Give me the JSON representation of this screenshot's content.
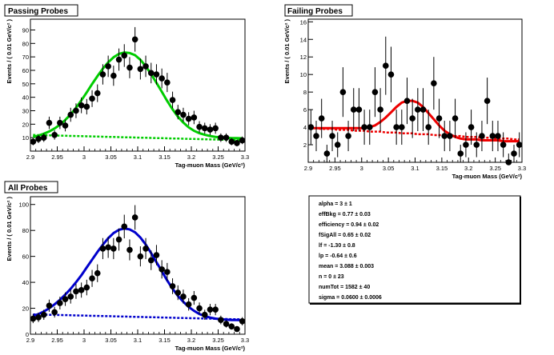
{
  "chart_data": [
    {
      "type": "scatter",
      "title": "Passing Probes",
      "xlabel": "Tag-muon Mass (GeV/c²)",
      "ylabel": "Events / ( 0.01 GeV/c² )",
      "xlim": [
        2.9,
        3.3
      ],
      "ylim": [
        0,
        98
      ],
      "xticks": [
        "2.9",
        "2.95",
        "3",
        "3.05",
        "3.1",
        "3.15",
        "3.2",
        "3.25",
        "3.3"
      ],
      "yticks": [
        "10",
        "20",
        "30",
        "40",
        "50",
        "60",
        "70",
        "80",
        "90"
      ],
      "ytick_values": [
        10,
        20,
        30,
        40,
        50,
        60,
        70,
        80,
        90
      ],
      "x": [
        2.905,
        2.915,
        2.925,
        2.935,
        2.945,
        2.955,
        2.965,
        2.975,
        2.985,
        2.995,
        3.005,
        3.015,
        3.025,
        3.035,
        3.045,
        3.055,
        3.065,
        3.075,
        3.085,
        3.095,
        3.105,
        3.115,
        3.125,
        3.135,
        3.145,
        3.155,
        3.165,
        3.175,
        3.185,
        3.195,
        3.205,
        3.215,
        3.225,
        3.235,
        3.245,
        3.255,
        3.265,
        3.275,
        3.285,
        3.295
      ],
      "series": [
        {
          "values": [
            7,
            9,
            10,
            21,
            12,
            21,
            19,
            27,
            30,
            34,
            33,
            39,
            43,
            57,
            63,
            56,
            68,
            71,
            62,
            83,
            61,
            63,
            58,
            57,
            54,
            51,
            38,
            29,
            27,
            24,
            25,
            18,
            17,
            16,
            17,
            10,
            10,
            7,
            6,
            8
          ],
          "color": "#000000"
        },
        {
          "values": [
            10.5,
            11.5,
            12.9,
            14.6,
            16.8,
            19.6,
            23.1,
            27.3,
            32.2,
            37.8,
            43.7,
            49.9,
            55.8,
            61.3,
            66.0,
            69.7,
            72.2,
            73.3,
            72.9,
            71.3,
            67.8,
            63.0,
            57.2,
            50.8,
            44.0,
            37.3,
            31.0,
            25.6,
            21.2,
            17.7,
            15.1,
            13.3,
            12.1,
            11.2,
            10.6,
            10.2,
            9.9,
            9.7,
            9.6,
            9.5
          ],
          "color": "#00cc00"
        },
        {
          "values": [
            12.0,
            11.9,
            11.8,
            11.7,
            11.6,
            11.5,
            11.4,
            11.3,
            11.2,
            11.1,
            11.0,
            10.9,
            10.8,
            10.7,
            10.6,
            10.5,
            10.4,
            10.3,
            10.2,
            10.1,
            10.0,
            9.9,
            9.8,
            9.7,
            9.6,
            9.5,
            9.4,
            9.3,
            9.2,
            9.1,
            9.0,
            8.9,
            8.8,
            8.7,
            8.6,
            8.5,
            8.4,
            8.3,
            8.2,
            8.1
          ],
          "color": "#00cc00"
        }
      ],
      "color": "#00cc00"
    },
    {
      "type": "scatter",
      "title": "Failing Probes",
      "xlabel": "Tag-muon Mass (GeV/c²)",
      "ylabel": "Events / ( 0.01 GeV/c² )",
      "xlim": [
        2.9,
        3.3
      ],
      "ylim": [
        0,
        16.3
      ],
      "xticks": [
        "2.9",
        "2.95",
        "3",
        "3.05",
        "3.1",
        "3.15",
        "3.2",
        "3.25",
        "3.3"
      ],
      "yticks": [
        "2",
        "4",
        "6",
        "8",
        "10",
        "12",
        "14",
        "16"
      ],
      "ytick_values": [
        2,
        4,
        6,
        8,
        10,
        12,
        14,
        16
      ],
      "x": [
        2.905,
        2.915,
        2.925,
        2.935,
        2.945,
        2.955,
        2.965,
        2.975,
        2.985,
        2.995,
        3.005,
        3.015,
        3.025,
        3.035,
        3.045,
        3.055,
        3.065,
        3.075,
        3.085,
        3.095,
        3.105,
        3.115,
        3.125,
        3.135,
        3.145,
        3.155,
        3.165,
        3.175,
        3.185,
        3.195,
        3.205,
        3.215,
        3.225,
        3.235,
        3.245,
        3.255,
        3.265,
        3.275,
        3.285,
        3.295
      ],
      "series": [
        {
          "values": [
            4,
            3,
            5,
            1,
            3,
            2,
            8,
            3,
            6,
            6,
            4,
            4,
            8,
            6,
            11,
            10,
            4,
            4,
            7,
            5,
            6,
            6,
            4,
            9,
            5,
            3,
            3,
            5,
            1,
            2,
            4,
            2,
            3,
            7,
            3,
            3,
            2,
            0,
            1,
            2
          ],
          "color": "#000000"
        },
        {
          "values": [
            3.9,
            3.9,
            3.9,
            3.9,
            3.9,
            3.9,
            3.9,
            3.9,
            3.9,
            3.9,
            3.9,
            4.0,
            4.2,
            4.6,
            5.1,
            5.7,
            6.3,
            6.8,
            7.0,
            7.0,
            6.8,
            6.3,
            5.6,
            4.9,
            4.2,
            3.6,
            3.2,
            2.9,
            2.7,
            2.6,
            2.6,
            2.6,
            2.5,
            2.5,
            2.5,
            2.5,
            2.4,
            2.4,
            2.4,
            2.4
          ],
          "color": "#ee0000"
        },
        {
          "values": [
            3.9,
            3.9,
            3.8,
            3.8,
            3.8,
            3.7,
            3.7,
            3.7,
            3.6,
            3.6,
            3.6,
            3.5,
            3.5,
            3.5,
            3.4,
            3.4,
            3.4,
            3.3,
            3.3,
            3.3,
            3.2,
            3.2,
            3.2,
            3.1,
            3.1,
            3.1,
            3.0,
            3.0,
            3.0,
            2.9,
            2.9,
            2.9,
            2.8,
            2.8,
            2.8,
            2.7,
            2.7,
            2.7,
            2.6,
            2.6
          ],
          "color": "#ee0000"
        }
      ],
      "color": "#ee0000"
    },
    {
      "type": "scatter",
      "title": "All Probes",
      "xlabel": "Tag-muon Mass (GeV/c²)",
      "ylabel": "Events / ( 0.01 GeV/c² )",
      "xlim": [
        2.9,
        3.3
      ],
      "ylim": [
        0,
        106
      ],
      "xticks": [
        "2.9",
        "2.95",
        "3",
        "3.05",
        "3.1",
        "3.15",
        "3.2",
        "3.25",
        "3.3"
      ],
      "yticks": [
        "0",
        "20",
        "40",
        "60",
        "80",
        "100"
      ],
      "ytick_values": [
        0,
        20,
        40,
        60,
        80,
        100
      ],
      "x": [
        2.905,
        2.915,
        2.925,
        2.935,
        2.945,
        2.955,
        2.965,
        2.975,
        2.985,
        2.995,
        3.005,
        3.015,
        3.025,
        3.035,
        3.045,
        3.055,
        3.065,
        3.075,
        3.085,
        3.095,
        3.105,
        3.115,
        3.125,
        3.135,
        3.145,
        3.155,
        3.165,
        3.175,
        3.185,
        3.195,
        3.205,
        3.215,
        3.225,
        3.235,
        3.245,
        3.255,
        3.265,
        3.275,
        3.285,
        3.295
      ],
      "series": [
        {
          "values": [
            12,
            13,
            15,
            22,
            17,
            24,
            27,
            29,
            33,
            34,
            36,
            43,
            47,
            66,
            67,
            66,
            73,
            83,
            65,
            90,
            60,
            66,
            57,
            61,
            50,
            48,
            37,
            32,
            29,
            23,
            28,
            20,
            15,
            19,
            19,
            11,
            8,
            6,
            4,
            10
          ],
          "color": "#000000"
        },
        {
          "values": [
            14.0,
            15.5,
            17.5,
            20.0,
            23.0,
            26.5,
            30.5,
            35.0,
            40.0,
            45.5,
            51.5,
            57.5,
            63.5,
            69.0,
            74.0,
            78.0,
            80.5,
            81.5,
            80.8,
            78.5,
            74.5,
            69.0,
            62.5,
            55.5,
            48.5,
            41.5,
            35.0,
            29.5,
            25.0,
            21.0,
            18.0,
            15.5,
            14.0,
            12.8,
            12.0,
            11.5,
            11.2,
            11.0,
            10.9,
            10.8
          ],
          "color": "#0000cc"
        },
        {
          "values": [
            15.3,
            15.2,
            15.1,
            15.0,
            14.9,
            14.8,
            14.7,
            14.6,
            14.5,
            14.4,
            14.3,
            14.2,
            14.1,
            14.0,
            13.9,
            13.8,
            13.7,
            13.6,
            13.5,
            13.4,
            13.3,
            13.2,
            13.1,
            13.0,
            12.9,
            12.8,
            12.7,
            12.6,
            12.5,
            12.4,
            12.3,
            12.2,
            12.1,
            12.0,
            11.9,
            11.8,
            11.7,
            11.6,
            11.5,
            11.4
          ],
          "color": "#0000cc"
        }
      ],
      "color": "#0000cc"
    }
  ],
  "stats_box": {
    "lines": [
      "alpha =  3  ± 1",
      "effBkg =  0.77  ± 0.03",
      "efficiency =  0.94  ± 0.02",
      "fSigAll =  0.65  ± 0.02",
      "lf =  -1.30  ± 0.8",
      "lp =  -0.64  ± 0.6",
      "mean =  3.088  ± 0.003",
      "n =  0  ± 23",
      "numTot =  1582  ± 40",
      "sigma =  0.0600  ± 0.0006"
    ]
  }
}
